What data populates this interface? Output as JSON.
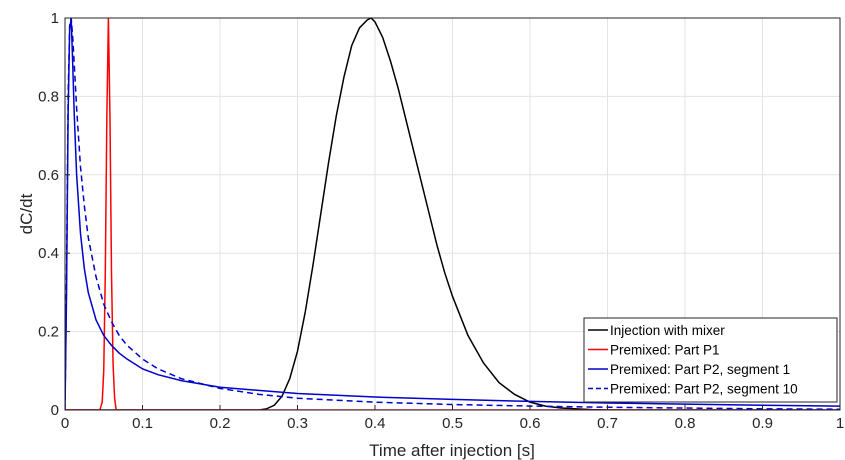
{
  "chart_data": {
    "type": "line",
    "title": "",
    "xlabel": "Time after injection [s]",
    "ylabel": "dC/dt",
    "xlim": [
      0,
      1
    ],
    "ylim": [
      0,
      1
    ],
    "xticks": [
      0,
      0.1,
      0.2,
      0.3,
      0.4,
      0.5,
      0.6,
      0.7,
      0.8,
      0.9,
      1
    ],
    "xtick_labels": [
      "0",
      "0.1",
      "0.2",
      "0.3",
      "0.4",
      "0.5",
      "0.6",
      "0.7",
      "0.8",
      "0.9",
      "1"
    ],
    "yticks": [
      0,
      0.2,
      0.4,
      0.6,
      0.8,
      1
    ],
    "ytick_labels": [
      "0",
      "0.2",
      "0.4",
      "0.6",
      "0.8",
      "1"
    ],
    "grid": true,
    "legend_position": "bottom-right",
    "series": [
      {
        "name": "Injection with mixer",
        "color": "#000000",
        "style": "solid",
        "x": [
          0,
          0.25,
          0.26,
          0.27,
          0.28,
          0.29,
          0.3,
          0.31,
          0.32,
          0.33,
          0.34,
          0.35,
          0.36,
          0.37,
          0.38,
          0.39,
          0.395,
          0.4,
          0.41,
          0.42,
          0.43,
          0.44,
          0.45,
          0.46,
          0.47,
          0.48,
          0.49,
          0.5,
          0.52,
          0.54,
          0.56,
          0.58,
          0.6,
          0.62,
          0.64,
          0.66,
          0.68,
          0.7,
          0.75,
          0.8,
          1
        ],
        "y": [
          0,
          0,
          0.003,
          0.012,
          0.035,
          0.08,
          0.15,
          0.25,
          0.37,
          0.5,
          0.63,
          0.75,
          0.85,
          0.93,
          0.975,
          0.995,
          1,
          0.99,
          0.95,
          0.89,
          0.82,
          0.74,
          0.66,
          0.58,
          0.5,
          0.42,
          0.35,
          0.29,
          0.19,
          0.12,
          0.07,
          0.04,
          0.02,
          0.01,
          0.005,
          0.003,
          0.001,
          0,
          0,
          0,
          0
        ]
      },
      {
        "name": "Premixed: Part P1",
        "color": "#ff0000",
        "style": "solid",
        "x": [
          0,
          0.045,
          0.048,
          0.05,
          0.052,
          0.054,
          0.056,
          0.058,
          0.06,
          0.062,
          0.064,
          0.066,
          1
        ],
        "y": [
          0,
          0,
          0.02,
          0.1,
          0.35,
          0.75,
          1,
          0.75,
          0.35,
          0.12,
          0.03,
          0,
          0
        ]
      },
      {
        "name": "Premixed: Part P2, segment 1",
        "color": "#0000cc",
        "style": "solid",
        "x": [
          0,
          0.002,
          0.004,
          0.006,
          0.008,
          0.01,
          0.012,
          0.015,
          0.02,
          0.025,
          0.03,
          0.04,
          0.05,
          0.06,
          0.07,
          0.08,
          0.1,
          0.12,
          0.15,
          0.2,
          0.3,
          0.4,
          0.5,
          0.6,
          0.7,
          0.8,
          0.9,
          1
        ],
        "y": [
          0,
          0.3,
          0.75,
          0.97,
          1,
          0.88,
          0.75,
          0.6,
          0.45,
          0.36,
          0.3,
          0.23,
          0.19,
          0.165,
          0.145,
          0.13,
          0.105,
          0.09,
          0.075,
          0.058,
          0.042,
          0.033,
          0.027,
          0.022,
          0.018,
          0.015,
          0.012,
          0.01
        ]
      },
      {
        "name": "Premixed: Part P2, segment 10",
        "color": "#0000cc",
        "style": "dashed",
        "x": [
          0,
          0.002,
          0.004,
          0.006,
          0.008,
          0.01,
          0.012,
          0.015,
          0.02,
          0.025,
          0.03,
          0.04,
          0.05,
          0.06,
          0.07,
          0.08,
          0.1,
          0.12,
          0.15,
          0.2,
          0.25,
          0.3,
          0.4,
          0.5,
          0.6,
          0.7,
          0.8,
          0.9,
          1
        ],
        "y": [
          0,
          0.35,
          0.8,
          0.98,
          1,
          0.95,
          0.88,
          0.77,
          0.62,
          0.52,
          0.44,
          0.34,
          0.27,
          0.225,
          0.19,
          0.165,
          0.13,
          0.105,
          0.08,
          0.055,
          0.04,
          0.03,
          0.02,
          0.014,
          0.01,
          0.007,
          0.005,
          0.003,
          0.002
        ]
      }
    ]
  }
}
